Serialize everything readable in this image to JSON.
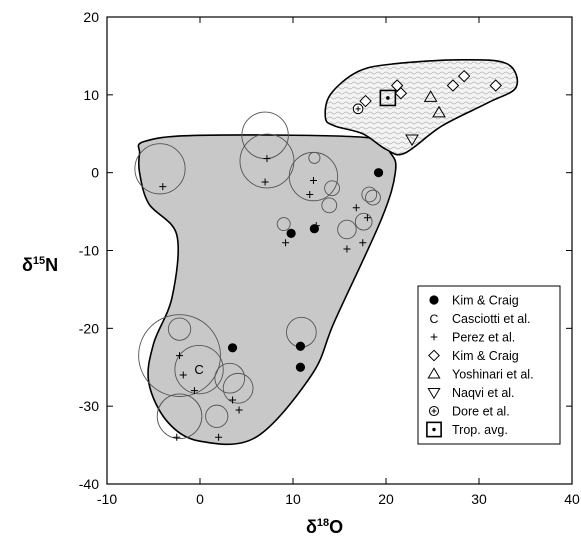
{
  "chart_data": {
    "type": "scatter",
    "xlabel": "δ18O",
    "ylabel": "δ15N",
    "xlabel_parts": {
      "base": "δ",
      "sup": "18",
      "main": "O"
    },
    "ylabel_parts": {
      "base": "δ",
      "sup": "15",
      "main": "N"
    },
    "xlim": [
      -10,
      40
    ],
    "ylim": [
      -40,
      20
    ],
    "xticks": [
      -10,
      0,
      10,
      20,
      30,
      40
    ],
    "yticks": [
      -40,
      -30,
      -20,
      -10,
      0,
      10,
      20
    ],
    "legend_position": "lower-right",
    "regions": [
      {
        "fill": "#c8c8c8",
        "outline": [
          [
            -6.5,
            2.5
          ],
          [
            -6.5,
            0
          ],
          [
            -5.5,
            -4
          ],
          [
            -2.5,
            -8
          ],
          [
            -3,
            -16
          ],
          [
            -5,
            -22
          ],
          [
            -5.5,
            -27
          ],
          [
            -3.5,
            -32
          ],
          [
            0,
            -34.5
          ],
          [
            6,
            -34
          ],
          [
            12,
            -26
          ],
          [
            14.5,
            -19
          ],
          [
            19.5,
            -6
          ],
          [
            21,
            0
          ],
          [
            20.5,
            2.5
          ],
          [
            18,
            4.5
          ],
          [
            0,
            4.8
          ],
          [
            -6,
            4
          ]
        ]
      },
      {
        "fill": "#f2f2f2",
        "outline": [
          [
            13.5,
            7
          ],
          [
            14,
            10
          ],
          [
            17,
            13
          ],
          [
            21,
            14
          ],
          [
            28,
            14.5
          ],
          [
            33,
            14
          ],
          [
            34,
            11
          ],
          [
            31,
            9
          ],
          [
            26,
            6
          ],
          [
            22,
            2.5
          ],
          [
            20,
            3
          ],
          [
            17.5,
            5
          ],
          [
            14.5,
            6
          ]
        ]
      }
    ],
    "series": [
      {
        "name": "Kim & Craig",
        "marker": "filled-circle",
        "points": [
          [
            19.2,
            0
          ],
          [
            12.3,
            -7.2
          ],
          [
            9.8,
            -7.8
          ],
          [
            3.5,
            -22.5
          ],
          [
            10.8,
            -22.3
          ],
          [
            10.8,
            -25
          ]
        ]
      },
      {
        "name": "Casciotti et al.",
        "marker": "letter-C",
        "points": [
          [
            -0.1,
            -25.3
          ]
        ]
      },
      {
        "name": "Perez et al.",
        "marker": "plus",
        "points": [
          [
            -4,
            -1.8
          ],
          [
            7.2,
            1.8
          ],
          [
            7,
            -1.2
          ],
          [
            12.2,
            -1
          ],
          [
            11.8,
            -2.8
          ],
          [
            16.8,
            -4.5
          ],
          [
            18,
            -5.8
          ],
          [
            12.5,
            -6.8
          ],
          [
            9.2,
            -9
          ],
          [
            17.5,
            -9
          ],
          [
            15.8,
            -9.8
          ],
          [
            -2.2,
            -23.5
          ],
          [
            -1.8,
            -26
          ],
          [
            -0.6,
            -28
          ],
          [
            3.5,
            -29.2
          ],
          [
            4.2,
            -30.5
          ],
          [
            -2.5,
            -34
          ],
          [
            2,
            -34
          ]
        ]
      },
      {
        "name": "Kim & Craig",
        "marker": "open-diamond",
        "points": [
          [
            17.8,
            9.2
          ],
          [
            21.2,
            11.2
          ],
          [
            21.6,
            10.2
          ],
          [
            27.2,
            11.2
          ],
          [
            28.4,
            12.4
          ],
          [
            31.8,
            11.2
          ]
        ]
      },
      {
        "name": "Yoshinari et al.",
        "marker": "open-triangle-up",
        "points": [
          [
            24.8,
            9.7
          ],
          [
            25.7,
            7.7
          ]
        ]
      },
      {
        "name": "Naqvi et al.",
        "marker": "open-triangle-down",
        "points": [
          [
            22.8,
            4.3
          ]
        ]
      },
      {
        "name": "Dore et al.",
        "marker": "circled-plus",
        "points": [
          [
            17,
            8.2
          ]
        ]
      },
      {
        "name": "Trop. avg.",
        "marker": "boxed-dot",
        "points": [
          [
            20.2,
            9.6
          ]
        ]
      }
    ],
    "error_circles": [
      {
        "x": -4.3,
        "y": 0.5,
        "r": 2.7
      },
      {
        "x": 7,
        "y": 4.8,
        "r": 2.5
      },
      {
        "x": 7.2,
        "y": 1.5,
        "r": 2.9
      },
      {
        "x": 12.2,
        "y": -0.5,
        "r": 2.6
      },
      {
        "x": 12.3,
        "y": 1.9,
        "r": 0.6
      },
      {
        "x": 14.2,
        "y": -2,
        "r": 0.8
      },
      {
        "x": 13.9,
        "y": -4.2,
        "r": 0.8
      },
      {
        "x": 18.2,
        "y": -2.8,
        "r": 0.8
      },
      {
        "x": 18.6,
        "y": -3.2,
        "r": 0.8
      },
      {
        "x": 15.8,
        "y": -7.3,
        "r": 1
      },
      {
        "x": 17.6,
        "y": -6.3,
        "r": 0.9
      },
      {
        "x": 9,
        "y": -6.6,
        "r": 0.7
      },
      {
        "x": 10.9,
        "y": -20.5,
        "r": 1.6
      },
      {
        "x": -2.2,
        "y": -23.5,
        "r": 4.4
      },
      {
        "x": -0.1,
        "y": -25.3,
        "r": 2.6
      },
      {
        "x": -2.2,
        "y": -20.1,
        "r": 1.2
      },
      {
        "x": 3.2,
        "y": -26.4,
        "r": 1.6
      },
      {
        "x": 4.1,
        "y": -27.7,
        "r": 1.6
      },
      {
        "x": -2.2,
        "y": -31.3,
        "r": 2.4
      },
      {
        "x": 1.8,
        "y": -31.3,
        "r": 1.2
      }
    ]
  }
}
